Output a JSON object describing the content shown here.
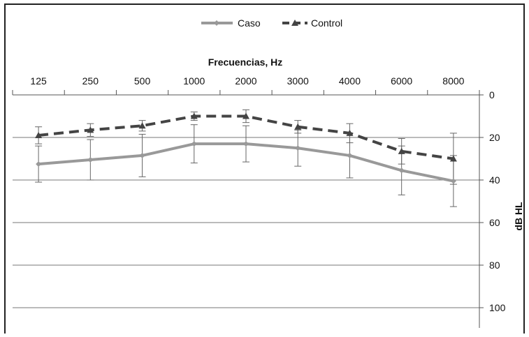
{
  "chart_data": {
    "type": "line",
    "title": "",
    "xlabel": "Frecuencias, Hz",
    "ylabel": "dB HL",
    "categories": [
      "125",
      "250",
      "500",
      "1000",
      "2000",
      "3000",
      "4000",
      "6000",
      "8000"
    ],
    "ylim": [
      0,
      100
    ],
    "y_ticks": [
      "0",
      "20",
      "40",
      "60",
      "80",
      "100"
    ],
    "y_inverted": true,
    "x_axis_position": "top",
    "y_axis_position": "right",
    "grid": true,
    "legend_position": "top",
    "series": [
      {
        "name": "Caso",
        "values": [
          32.5,
          30.5,
          28.5,
          23,
          23,
          25,
          28.5,
          35.5,
          40.5
        ],
        "error": [
          8.5,
          9.5,
          10,
          9,
          8.5,
          8.5,
          10.5,
          11.5,
          12
        ],
        "color": "#999999",
        "marker": "diamond",
        "line_style": "solid"
      },
      {
        "name": "Control",
        "values": [
          19,
          16.5,
          14.5,
          10,
          10,
          15,
          18,
          26.5,
          30
        ],
        "error": [
          4,
          3,
          2.5,
          2,
          3,
          3,
          4.5,
          6,
          12
        ],
        "color": "#444444",
        "marker": "triangle",
        "line_style": "dashed"
      }
    ]
  }
}
